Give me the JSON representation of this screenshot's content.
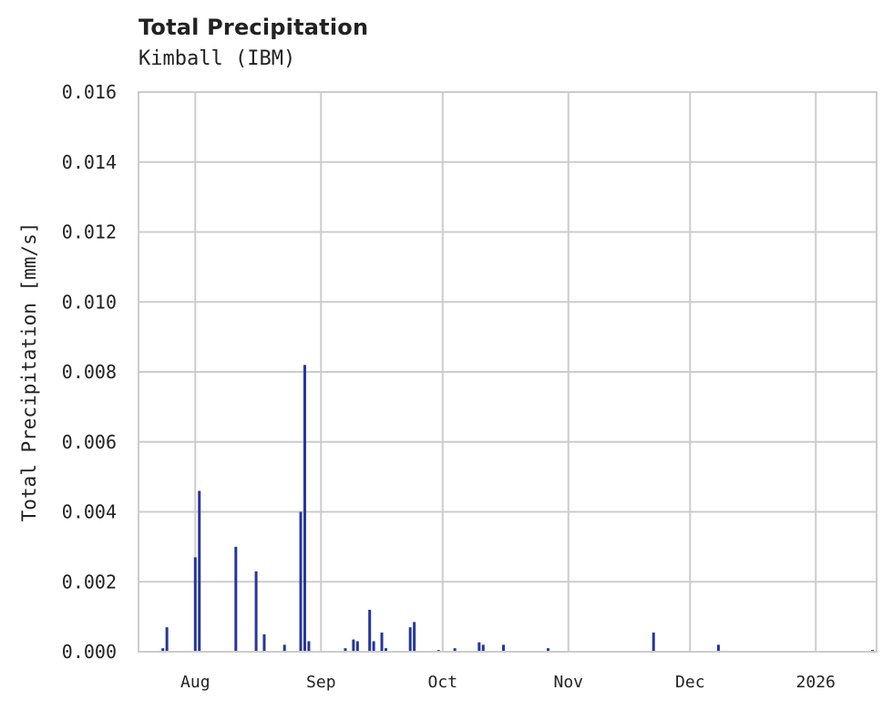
{
  "chart_data": {
    "type": "bar",
    "title": "Total Precipitation",
    "subtitle": "Kimball (IBM)",
    "xlabel": "",
    "ylabel": "Total Precipitation [mm/s]",
    "ylim": [
      0,
      0.016
    ],
    "yticks": [
      "0.000",
      "0.002",
      "0.004",
      "0.006",
      "0.008",
      "0.010",
      "0.012",
      "0.014",
      "0.016"
    ],
    "xticks": [
      "Aug",
      "Sep",
      "Oct",
      "Nov",
      "Dec",
      "2026"
    ],
    "grid": true,
    "bar_color": "#26369a",
    "x_range": [
      "2025-07-18",
      "2026-01-16"
    ],
    "points": [
      {
        "date": "2025-07-24",
        "value": 0.0001
      },
      {
        "date": "2025-07-25",
        "value": 0.0007
      },
      {
        "date": "2025-08-01",
        "value": 0.0027
      },
      {
        "date": "2025-08-02",
        "value": 0.0046
      },
      {
        "date": "2025-08-11",
        "value": 0.003
      },
      {
        "date": "2025-08-16",
        "value": 0.0023
      },
      {
        "date": "2025-08-18",
        "value": 0.0005
      },
      {
        "date": "2025-08-23",
        "value": 0.0002
      },
      {
        "date": "2025-08-27",
        "value": 0.004
      },
      {
        "date": "2025-08-28",
        "value": 0.0082
      },
      {
        "date": "2025-08-29",
        "value": 0.0003
      },
      {
        "date": "2025-09-07",
        "value": 0.0001
      },
      {
        "date": "2025-09-09",
        "value": 0.00035
      },
      {
        "date": "2025-09-10",
        "value": 0.0003
      },
      {
        "date": "2025-09-13",
        "value": 0.0012
      },
      {
        "date": "2025-09-14",
        "value": 0.0003
      },
      {
        "date": "2025-09-16",
        "value": 0.00055
      },
      {
        "date": "2025-09-17",
        "value": 0.0001
      },
      {
        "date": "2025-09-23",
        "value": 0.0007
      },
      {
        "date": "2025-09-24",
        "value": 0.00085
      },
      {
        "date": "2025-09-30",
        "value": 5e-05
      },
      {
        "date": "2025-10-04",
        "value": 0.0001
      },
      {
        "date": "2025-10-10",
        "value": 0.00027
      },
      {
        "date": "2025-10-11",
        "value": 0.0002
      },
      {
        "date": "2025-10-16",
        "value": 0.0002
      },
      {
        "date": "2025-10-27",
        "value": 0.0001
      },
      {
        "date": "2025-11-22",
        "value": 0.00055
      },
      {
        "date": "2025-12-08",
        "value": 0.0002
      },
      {
        "date": "2026-01-15",
        "value": 5e-05
      }
    ]
  }
}
